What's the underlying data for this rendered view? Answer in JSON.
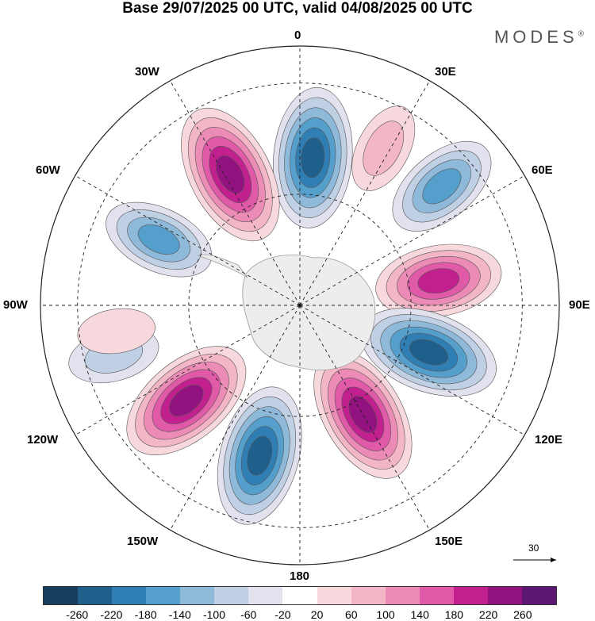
{
  "title": "Base 29/07/2025 00 UTC, valid 04/08/2025 00 UTC",
  "brand": {
    "text": "MODES",
    "mark": "®"
  },
  "longitude_labels": {
    "lon_0": "0",
    "lon_30e": "30E",
    "lon_60e": "60E",
    "lon_90e": "90E",
    "lon_120e": "120E",
    "lon_150e": "150E",
    "lon_180": "180",
    "lon_150w": "150W",
    "lon_120w": "120W",
    "lon_90w": "90W",
    "lon_60w": "60W",
    "lon_30w": "30W"
  },
  "reference_vector": {
    "label": "30"
  },
  "colorbar": {
    "colors": [
      "#173e5c",
      "#1e5f8c",
      "#2f7fb5",
      "#559fcd",
      "#8fb9d9",
      "#bfcfe4",
      "#e2e2ef",
      "#ffffff",
      "#f7d9dd",
      "#f3b6c6",
      "#ec8cb6",
      "#e05aa8",
      "#c2208f",
      "#92127f",
      "#5e1673"
    ],
    "ticks": [
      "-260",
      "-220",
      "-180",
      "-140",
      "-100",
      "-60",
      "-20",
      "20",
      "60",
      "100",
      "140",
      "180",
      "220",
      "260"
    ]
  },
  "anomalies": [
    {
      "name": "neg-anomaly-lon0",
      "lon": 5,
      "lat": -50,
      "value": -240
    },
    {
      "name": "pos-anomaly-lon30w",
      "lon": -28,
      "lat": -50,
      "value": 250
    },
    {
      "name": "pos-anomaly-lon30e",
      "lon": 28,
      "lat": -42,
      "value": 100
    },
    {
      "name": "neg-anomaly-lon50e",
      "lon": 50,
      "lat": -40,
      "value": -170
    },
    {
      "name": "pos-anomaly-lon80e",
      "lon": 80,
      "lat": -52,
      "value": 200
    },
    {
      "name": "neg-anomaly-lon110e",
      "lon": 110,
      "lat": -53,
      "value": -240
    },
    {
      "name": "pos-anomaly-lon150e",
      "lon": 150,
      "lat": -56,
      "value": 240
    },
    {
      "name": "neg-anomaly-lon165w",
      "lon": -165,
      "lat": -48,
      "value": -240
    },
    {
      "name": "pos-anomaly-lon130w",
      "lon": -130,
      "lat": -50,
      "value": 240
    },
    {
      "name": "neg-anomaly-lon65w",
      "lon": -65,
      "lat": -48,
      "value": -160
    },
    {
      "name": "neg-anomaly-lon105w",
      "lon": -105,
      "lat": -38,
      "value": -100
    },
    {
      "name": "pos-anomaly-lon100w",
      "lon": -98,
      "lat": -40,
      "value": 60
    }
  ]
}
